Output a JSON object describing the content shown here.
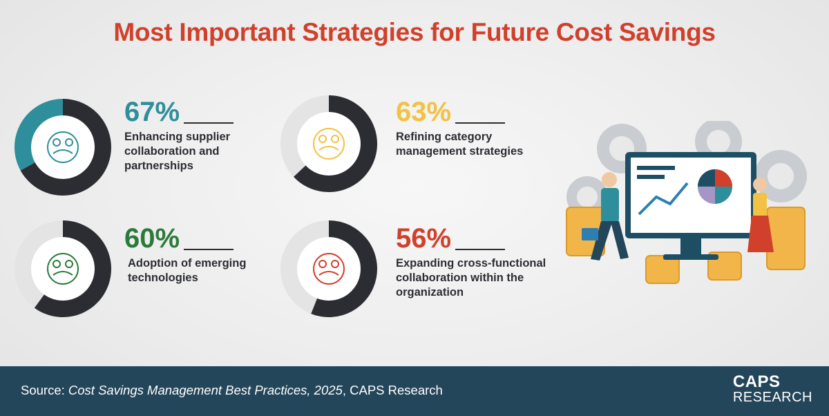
{
  "title": "Most Important Strategies for Future Cost Savings",
  "colors": {
    "title": "#d0402b",
    "teal": "#2e8e9b",
    "yellow": "#f3c144",
    "green": "#2b7a3a",
    "red": "#d0402b",
    "dark": "#2b2d33",
    "light": "#e4e4e4",
    "footer": "#24465a"
  },
  "chart_data": [
    {
      "type": "pie",
      "label": "Enhancing supplier collaboration and partnerships",
      "percent": 67,
      "percent_text": "67%",
      "label_lines": [
        "Enhancing supplier",
        "collaboration and",
        "partnerships"
      ],
      "accent": "#2e8e9b",
      "icon": "handshake-gears-icon"
    },
    {
      "type": "pie",
      "label": "Refining category management strategies",
      "percent": 63,
      "percent_text": "63%",
      "label_lines": [
        "Refining category",
        "management strategies"
      ],
      "accent": "#f3c144",
      "icon": "hand-network-icon"
    },
    {
      "type": "pie",
      "label": "Adoption of emerging technologies",
      "percent": 60,
      "percent_text": "60%",
      "label_lines": [
        "Adoption of emerging",
        "technologies"
      ],
      "accent": "#2b7a3a",
      "icon": "tech-cycle-icon"
    },
    {
      "type": "pie",
      "label": "Expanding cross-functional collaboration within the organization",
      "percent": 56,
      "percent_text": "56%",
      "label_lines": [
        "Expanding cross-functional",
        "collaboration within the",
        "organization"
      ],
      "accent": "#d0402b",
      "icon": "people-network-icon"
    }
  ],
  "footer": {
    "source_prefix": "Source: ",
    "source_title": "Cost Savings Management Best Practices, 2025",
    "source_suffix": ", CAPS Research",
    "logo_line1": "CAPS",
    "logo_line2": "RESEARCH"
  }
}
